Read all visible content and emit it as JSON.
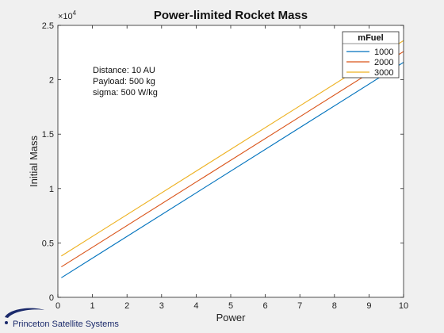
{
  "chart_data": {
    "type": "line",
    "title": "Power-limited Rocket Mass",
    "xlabel": "Power",
    "ylabel": "Initial Mass",
    "xlim": [
      0,
      10
    ],
    "ylim": [
      0,
      25000
    ],
    "x_ticks": [
      "0",
      "1",
      "2",
      "3",
      "4",
      "5",
      "6",
      "7",
      "8",
      "9",
      "10"
    ],
    "y_ticks": [
      "0",
      "0.5",
      "1",
      "1.5",
      "2",
      "2.5"
    ],
    "y_exponent_base": "×10",
    "y_exponent_power": "4",
    "grid": false,
    "legend_title": "mFuel",
    "legend_position": "top-right",
    "annotations": [
      "Distance: 10 AU",
      "Payload: 500 kg",
      "sigma: 500 W/kg"
    ],
    "series": [
      {
        "name": "1000",
        "color": "#0072BD",
        "x": [
          0.1,
          10
        ],
        "y": [
          1800,
          21600
        ]
      },
      {
        "name": "2000",
        "color": "#D95319",
        "x": [
          0.1,
          10
        ],
        "y": [
          2800,
          22600
        ]
      },
      {
        "name": "3000",
        "color": "#EDB120",
        "x": [
          0.1,
          10
        ],
        "y": [
          3800,
          23600
        ]
      }
    ]
  },
  "branding": {
    "logo_text": "Princeton Satellite Systems",
    "logo_color": "#1b2a6b"
  }
}
